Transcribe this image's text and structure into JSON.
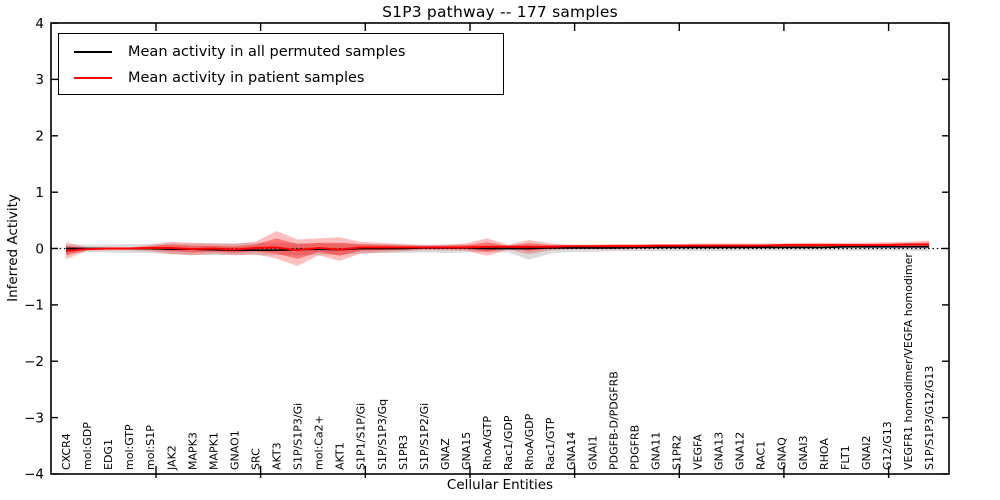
{
  "chart_data": {
    "type": "line",
    "title": "S1P3 pathway -- 177 samples",
    "xlabel": "Cellular Entities",
    "ylabel": "Inferred Activity",
    "ylim": [
      -4,
      4
    ],
    "yticks": [
      4,
      3,
      2,
      1,
      0,
      -1,
      -2,
      -3,
      -4
    ],
    "grid": false,
    "legend_position": "upper left",
    "zero_line_style": "dotted",
    "categories": [
      "CXCR4",
      "mol:GDP",
      "EDG1",
      "mol:GTP",
      "mol:S1P",
      "JAK2",
      "MAPK3",
      "MAPK1",
      "GNAO1",
      "SRC",
      "AKT3",
      "S1P/S1P3/Gi",
      "mol:Ca2+",
      "AKT1",
      "S1P1/S1P/Gi",
      "S1P/S1P3/Gq",
      "S1PR3",
      "S1P/S1P2/Gi",
      "GNAZ",
      "GNA15",
      "RhoA/GTP",
      "Rac1/GDP",
      "RhoA/GDP",
      "Rac1/GTP",
      "GNA14",
      "GNAI1",
      "PDGFB-D/PDGFRB",
      "PDGFRB",
      "GNA11",
      "S1PR2",
      "VEGFA",
      "GNA13",
      "GNA12",
      "RAC1",
      "GNAQ",
      "GNAI3",
      "RHOA",
      "FLT1",
      "GNAI2",
      "G12/G13",
      "VEGFR1 homodimer/VEGFA homodimer",
      "S1P/S1P3/G12/G13"
    ],
    "series": [
      {
        "name": "Mean activity in all permuted samples",
        "color": "#000000",
        "band_color": "rgba(0,0,0,0.14)",
        "values": [
          0,
          0,
          0,
          0,
          0,
          -0.01,
          -0.01,
          -0.02,
          -0.03,
          -0.03,
          -0.03,
          -0.02,
          -0.01,
          -0.02,
          0,
          0,
          0,
          0.01,
          0.01,
          0.01,
          0,
          0,
          0,
          0.01,
          0.01,
          0.01,
          0.01,
          0.02,
          0.02,
          0.02,
          0.02,
          0.02,
          0.02,
          0.02,
          0.02,
          0.02,
          0.02,
          0.03,
          0.03,
          0.03,
          0.03,
          0.03
        ],
        "band_upper": [
          0.07,
          0.07,
          0.07,
          0.08,
          0.08,
          0.09,
          0.09,
          0.09,
          0.09,
          0.1,
          0.1,
          0.1,
          0.09,
          0.09,
          0.08,
          0.08,
          0.07,
          0.07,
          0.07,
          0.07,
          0.06,
          0.06,
          0.06,
          0.06,
          0.06,
          0.06,
          0.06,
          0.06,
          0.06,
          0.06,
          0.06,
          0.06,
          0.06,
          0.06,
          0.06,
          0.06,
          0.06,
          0.07,
          0.07,
          0.07,
          0.07,
          0.08
        ],
        "band_lower": [
          -0.08,
          -0.07,
          -0.07,
          -0.08,
          -0.08,
          -0.1,
          -0.11,
          -0.11,
          -0.11,
          -0.12,
          -0.12,
          -0.12,
          -0.11,
          -0.11,
          -0.09,
          -0.08,
          -0.08,
          -0.07,
          -0.08,
          -0.07,
          -0.06,
          -0.07,
          -0.2,
          -0.09,
          -0.06,
          -0.06,
          -0.05,
          -0.05,
          -0.05,
          -0.05,
          -0.05,
          -0.05,
          -0.04,
          -0.04,
          -0.04,
          -0.04,
          -0.04,
          -0.04,
          -0.04,
          -0.04,
          -0.04,
          -0.05
        ]
      },
      {
        "name": "Mean activity in patient samples",
        "color": "#ff0000",
        "band_color_outer": "rgba(255,0,0,0.25)",
        "band_color_inner": "rgba(255,0,0,0.38)",
        "values": [
          -0.04,
          -0.01,
          0,
          0,
          0.01,
          0.01,
          -0.01,
          0,
          -0.02,
          0.01,
          0.02,
          -0.03,
          0.01,
          -0.02,
          0.02,
          0.02,
          0.02,
          0.02,
          0.02,
          0.02,
          0.03,
          0.03,
          0.03,
          0.03,
          0.04,
          0.04,
          0.04,
          0.04,
          0.05,
          0.05,
          0.05,
          0.05,
          0.05,
          0.05,
          0.06,
          0.06,
          0.06,
          0.06,
          0.06,
          0.06,
          0.07,
          0.07
        ],
        "band_upper": [
          0.11,
          0.02,
          0.02,
          0.02,
          0.06,
          0.12,
          0.1,
          0.09,
          0.08,
          0.12,
          0.31,
          0.16,
          0.18,
          0.2,
          0.12,
          0.1,
          0.08,
          0.06,
          0.07,
          0.09,
          0.18,
          0.07,
          0.15,
          0.09,
          0.07,
          0.07,
          0.08,
          0.08,
          0.08,
          0.08,
          0.09,
          0.09,
          0.09,
          0.09,
          0.09,
          0.1,
          0.1,
          0.1,
          0.1,
          0.11,
          0.12,
          0.14
        ],
        "band_lower": [
          -0.19,
          -0.04,
          -0.03,
          -0.03,
          -0.05,
          -0.1,
          -0.12,
          -0.1,
          -0.12,
          -0.1,
          -0.18,
          -0.31,
          -0.12,
          -0.22,
          -0.09,
          -0.07,
          -0.05,
          -0.03,
          -0.03,
          -0.04,
          -0.13,
          -0.02,
          -0.1,
          -0.03,
          -0.01,
          -0.01,
          -0.01,
          -0.01,
          0,
          0,
          0,
          0,
          0.01,
          0.01,
          0.01,
          0.01,
          0.02,
          0.02,
          0.02,
          0.02,
          0.02,
          0.01
        ]
      }
    ]
  }
}
